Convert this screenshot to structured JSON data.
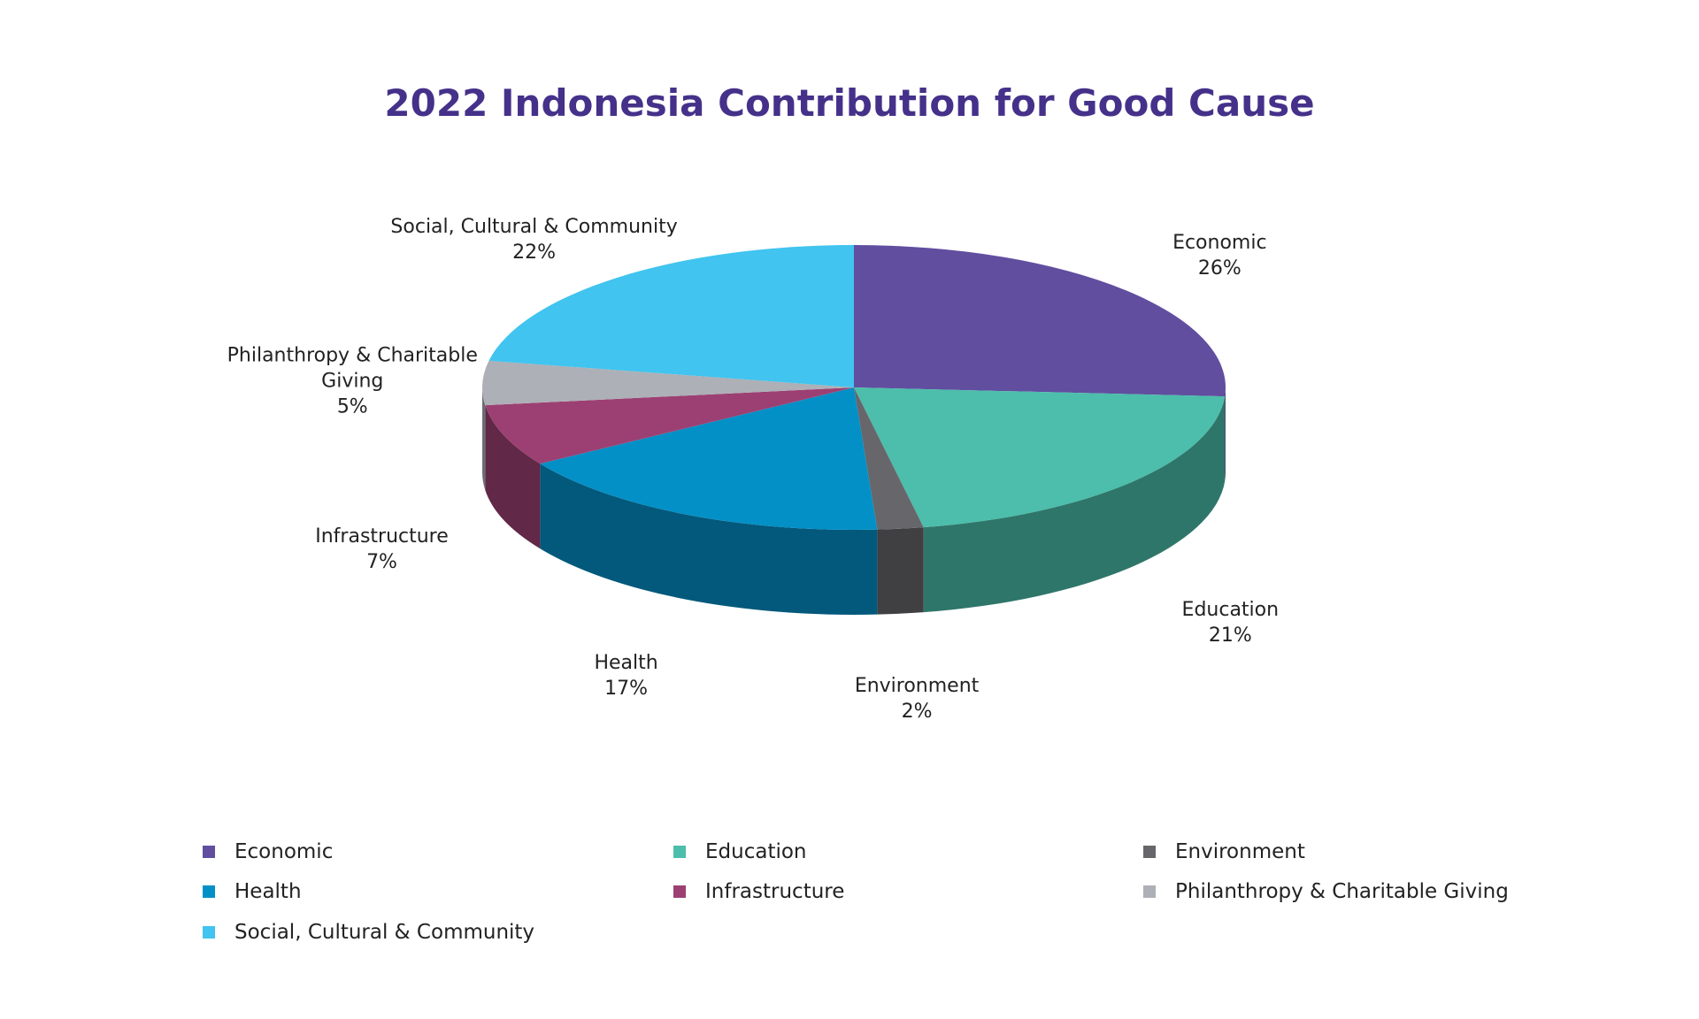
{
  "chart_data": {
    "type": "pie",
    "title": "2022 Indonesia Contribution for Good Cause",
    "categories": [
      "Economic",
      "Education",
      "Environment",
      "Health",
      "Infrastructure",
      "Philanthropy & Charitable Giving",
      "Social, Cultural & Community"
    ],
    "values": [
      26,
      21,
      2,
      17,
      7,
      5,
      22
    ],
    "value_labels": [
      "26%",
      "21%",
      "2%",
      "17%",
      "7%",
      "5%",
      "22%"
    ],
    "colors": [
      "#614e9f",
      "#4cbeab",
      "#67666b",
      "#0390c6",
      "#9c4073",
      "#adb0b6",
      "#41c4ef"
    ],
    "legend": "bottom"
  }
}
